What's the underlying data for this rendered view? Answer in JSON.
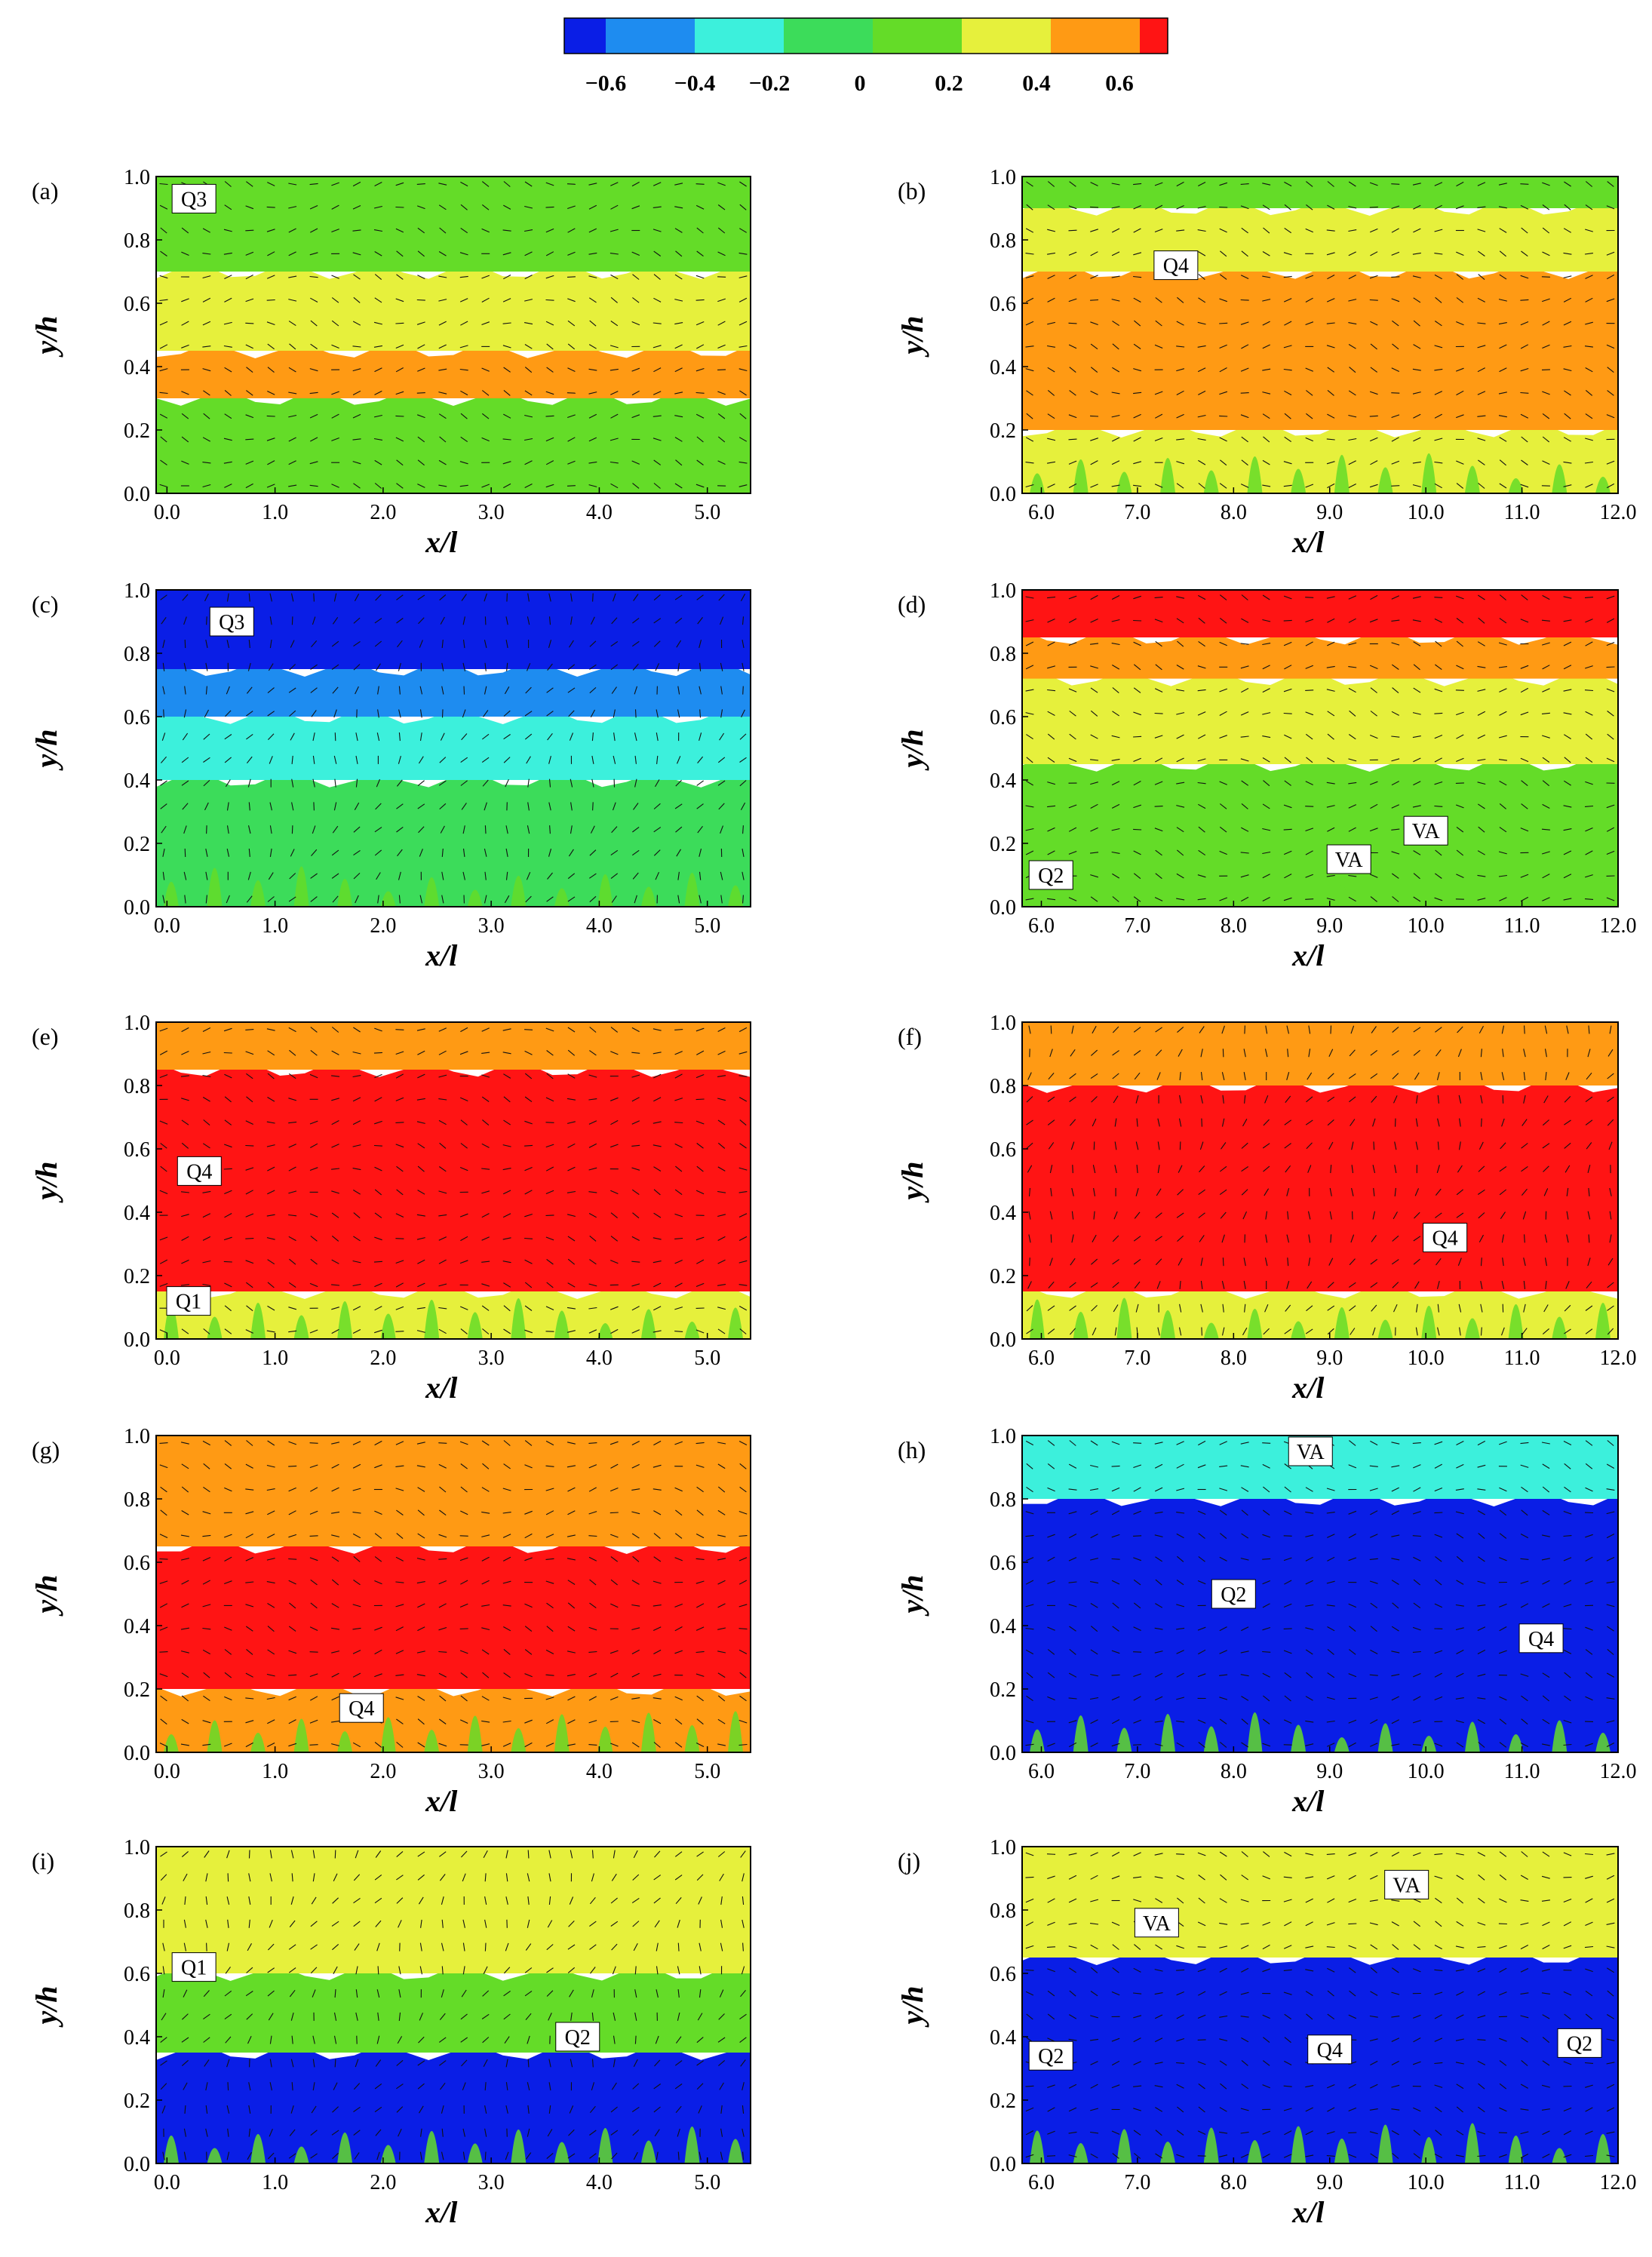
{
  "colorbar": {
    "colors": [
      "#0a1ee6",
      "#1e8cf0",
      "#3cf0dc",
      "#3cdc5a",
      "#64dc28",
      "#e6f03c",
      "#ff9a14",
      "#ff1414"
    ],
    "tick_labels": [
      "−0.6",
      "−0.4",
      "−0.2",
      "0",
      "0.2",
      "0.4",
      "0.6"
    ]
  },
  "axes": {
    "xlabel": "x/l",
    "ylabel": "y/h",
    "y_ticks": [
      "0.0",
      "0.2",
      "0.4",
      "0.6",
      "0.8",
      "1.0"
    ],
    "x_ticks_left": [
      "0.0",
      "1.0",
      "2.0",
      "3.0",
      "4.0",
      "5.0"
    ],
    "x_ticks_right": [
      "6.0",
      "7.0",
      "8.0",
      "9.0",
      "10.0",
      "11.0",
      "12.0"
    ]
  },
  "chart_data": [
    {
      "type": "heatmap",
      "panel": "(a)",
      "xlim": [
        -0.1,
        5.4
      ],
      "ylim": [
        0,
        1
      ],
      "dominant_bands": [
        {
          "y_from": 0.0,
          "y_to": 0.3,
          "value": 0.15
        },
        {
          "y_from": 0.3,
          "y_to": 0.45,
          "value": 0.5
        },
        {
          "y_from": 0.45,
          "y_to": 0.7,
          "value": 0.3
        },
        {
          "y_from": 0.7,
          "y_to": 1.0,
          "value": 0.1
        }
      ],
      "annotations": [
        {
          "text": "Q3",
          "x": 0.25,
          "y": 0.93
        }
      ]
    },
    {
      "type": "heatmap",
      "panel": "(b)",
      "xlim": [
        5.8,
        12.0
      ],
      "ylim": [
        0,
        1
      ],
      "dominant_bands": [
        {
          "y_from": 0.0,
          "y_to": 0.2,
          "value": 0.25
        },
        {
          "y_from": 0.2,
          "y_to": 0.7,
          "value": 0.5
        },
        {
          "y_from": 0.7,
          "y_to": 0.9,
          "value": 0.3
        },
        {
          "y_from": 0.9,
          "y_to": 1.0,
          "value": 0.1
        }
      ],
      "annotations": [
        {
          "text": "Q4",
          "x": 7.4,
          "y": 0.72
        }
      ]
    },
    {
      "type": "heatmap",
      "panel": "(c)",
      "xlim": [
        -0.1,
        5.4
      ],
      "ylim": [
        0,
        1
      ],
      "dominant_bands": [
        {
          "y_from": 0.0,
          "y_to": 0.4,
          "value": -0.1
        },
        {
          "y_from": 0.4,
          "y_to": 0.6,
          "value": -0.3
        },
        {
          "y_from": 0.6,
          "y_to": 0.75,
          "value": -0.5
        },
        {
          "y_from": 0.75,
          "y_to": 1.0,
          "value": -0.7
        }
      ],
      "annotations": [
        {
          "text": "Q3",
          "x": 0.6,
          "y": 0.9
        }
      ]
    },
    {
      "type": "heatmap",
      "panel": "(d)",
      "xlim": [
        5.8,
        12.0
      ],
      "ylim": [
        0,
        1
      ],
      "dominant_bands": [
        {
          "y_from": 0.0,
          "y_to": 0.45,
          "value": 0.1
        },
        {
          "y_from": 0.45,
          "y_to": 0.72,
          "value": 0.3
        },
        {
          "y_from": 0.72,
          "y_to": 0.85,
          "value": 0.5
        },
        {
          "y_from": 0.85,
          "y_to": 1.0,
          "value": 0.7
        }
      ],
      "annotations": [
        {
          "text": "Q2",
          "x": 6.1,
          "y": 0.1
        },
        {
          "text": "VA",
          "x": 9.2,
          "y": 0.15
        },
        {
          "text": "VA",
          "x": 10.0,
          "y": 0.24
        }
      ]
    },
    {
      "type": "heatmap",
      "panel": "(e)",
      "xlim": [
        -0.1,
        5.4
      ],
      "ylim": [
        0,
        1
      ],
      "dominant_bands": [
        {
          "y_from": 0.0,
          "y_to": 0.15,
          "value": 0.2
        },
        {
          "y_from": 0.15,
          "y_to": 0.85,
          "value": 0.7
        },
        {
          "y_from": 0.85,
          "y_to": 1.0,
          "value": 0.5
        }
      ],
      "annotations": [
        {
          "text": "Q4",
          "x": 0.3,
          "y": 0.53
        },
        {
          "text": "Q1",
          "x": 0.2,
          "y": 0.12
        }
      ]
    },
    {
      "type": "heatmap",
      "panel": "(f)",
      "xlim": [
        5.8,
        12.0
      ],
      "ylim": [
        0,
        1
      ],
      "dominant_bands": [
        {
          "y_from": 0.0,
          "y_to": 0.15,
          "value": 0.2
        },
        {
          "y_from": 0.15,
          "y_to": 0.8,
          "value": 0.7
        },
        {
          "y_from": 0.8,
          "y_to": 1.0,
          "value": 0.5
        }
      ],
      "annotations": [
        {
          "text": "Q4",
          "x": 10.2,
          "y": 0.32
        }
      ]
    },
    {
      "type": "heatmap",
      "panel": "(g)",
      "xlim": [
        -0.1,
        5.4
      ],
      "ylim": [
        0,
        1
      ],
      "dominant_bands": [
        {
          "y_from": 0.0,
          "y_to": 0.2,
          "value": 0.5
        },
        {
          "y_from": 0.2,
          "y_to": 0.65,
          "value": 0.7
        },
        {
          "y_from": 0.65,
          "y_to": 1.0,
          "value": 0.5
        }
      ],
      "annotations": [
        {
          "text": "Q4",
          "x": 1.8,
          "y": 0.14
        }
      ]
    },
    {
      "type": "heatmap",
      "panel": "(h)",
      "xlim": [
        5.8,
        12.0
      ],
      "ylim": [
        0,
        1
      ],
      "dominant_bands": [
        {
          "y_from": 0.0,
          "y_to": 0.8,
          "value": -0.7
        },
        {
          "y_from": 0.8,
          "y_to": 1.0,
          "value": -0.3
        }
      ],
      "annotations": [
        {
          "text": "Q2",
          "x": 8.0,
          "y": 0.5
        },
        {
          "text": "Q4",
          "x": 11.2,
          "y": 0.36
        },
        {
          "text": "VA",
          "x": 8.8,
          "y": 0.95
        }
      ]
    },
    {
      "type": "heatmap",
      "panel": "(i)",
      "xlim": [
        -0.1,
        5.4
      ],
      "ylim": [
        0,
        1
      ],
      "dominant_bands": [
        {
          "y_from": 0.0,
          "y_to": 0.35,
          "value": -0.7
        },
        {
          "y_from": 0.35,
          "y_to": 0.6,
          "value": 0.1
        },
        {
          "y_from": 0.6,
          "y_to": 1.0,
          "value": 0.3
        }
      ],
      "annotations": [
        {
          "text": "Q1",
          "x": 0.25,
          "y": 0.62
        },
        {
          "text": "Q2",
          "x": 3.8,
          "y": 0.4
        }
      ]
    },
    {
      "type": "heatmap",
      "panel": "(j)",
      "xlim": [
        5.8,
        12.0
      ],
      "ylim": [
        0,
        1
      ],
      "dominant_bands": [
        {
          "y_from": 0.0,
          "y_to": 0.65,
          "value": -0.7
        },
        {
          "y_from": 0.65,
          "y_to": 1.0,
          "value": 0.3
        }
      ],
      "annotations": [
        {
          "text": "Q2",
          "x": 6.1,
          "y": 0.34
        },
        {
          "text": "Q4",
          "x": 9.0,
          "y": 0.36
        },
        {
          "text": "Q2",
          "x": 11.6,
          "y": 0.38
        },
        {
          "text": "VA",
          "x": 7.2,
          "y": 0.76
        },
        {
          "text": "VA",
          "x": 9.8,
          "y": 0.88
        }
      ]
    }
  ]
}
